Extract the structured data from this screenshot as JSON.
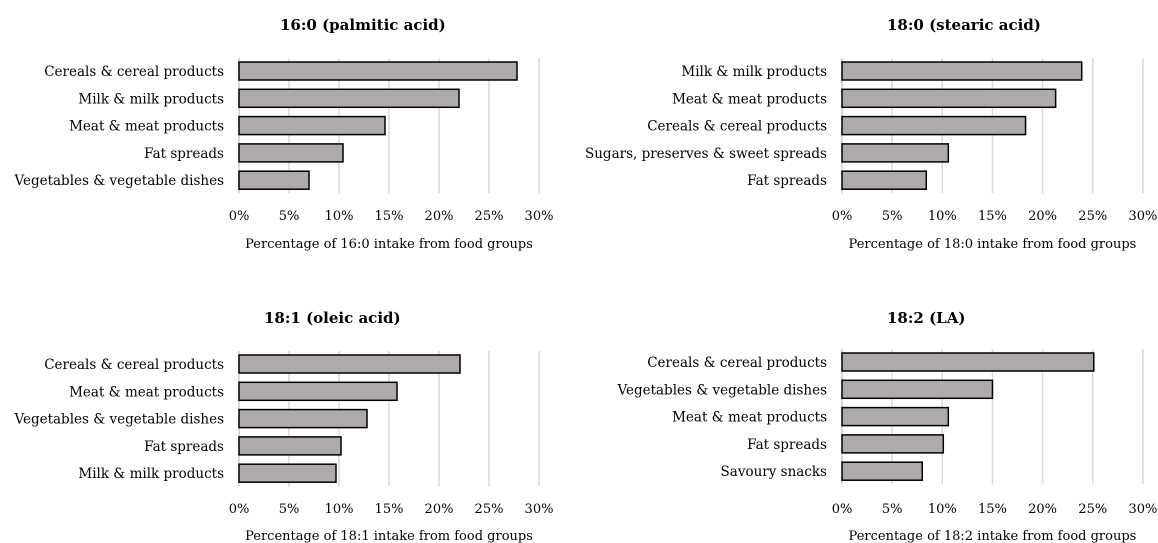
{
  "chart_data": [
    {
      "type": "bar",
      "orientation": "horizontal",
      "title": "16:0 (palmitic acid)",
      "xlabel": "Percentage of 16:0 intake from food groups",
      "categories": [
        "Cereals & cereal products",
        "Milk & milk products",
        "Meat & meat products",
        "Fat spreads",
        "Vegetables & vegetable dishes"
      ],
      "values": [
        27.8,
        22.0,
        14.6,
        10.4,
        7.0
      ],
      "xlim": [
        0,
        30
      ],
      "ticks": [
        "0%",
        "5%",
        "10%",
        "15%",
        "20%",
        "25%",
        "30%"
      ],
      "grid": true
    },
    {
      "type": "bar",
      "orientation": "horizontal",
      "title": "18:0 (stearic acid)",
      "xlabel": "Percentage of 18:0 intake from food groups",
      "categories": [
        "Milk & milk products",
        "Meat & meat products",
        "Cereals & cereal products",
        "Sugars, preserves & sweet spreads",
        "Fat spreads"
      ],
      "values": [
        23.9,
        21.3,
        18.3,
        10.6,
        8.4
      ],
      "xlim": [
        0,
        30
      ],
      "ticks": [
        "0%",
        "5%",
        "10%",
        "15%",
        "20%",
        "25%",
        "30%"
      ],
      "grid": true
    },
    {
      "type": "bar",
      "orientation": "horizontal",
      "title": "18:1 (oleic acid)",
      "xlabel": "Percentage of 18:1 intake from food groups",
      "categories": [
        "Cereals & cereal products",
        "Meat & meat products",
        "Vegetables & vegetable dishes",
        "Fat spreads",
        "Milk & milk products"
      ],
      "values": [
        22.1,
        15.8,
        12.8,
        10.2,
        9.7
      ],
      "xlim": [
        0,
        30
      ],
      "ticks": [
        "0%",
        "5%",
        "10%",
        "15%",
        "20%",
        "25%",
        "30%"
      ],
      "grid": true
    },
    {
      "type": "bar",
      "orientation": "horizontal",
      "title": "18:2 (LA)",
      "xlabel": "Percentage of 18:2 intake from food groups",
      "categories": [
        "Cereals & cereal products",
        "Vegetables & vegetable dishes",
        "Meat & meat products",
        "Fat spreads",
        "Savoury snacks"
      ],
      "values": [
        25.1,
        15.0,
        10.6,
        10.1,
        8.0
      ],
      "xlim": [
        0,
        30
      ],
      "ticks": [
        "0%",
        "5%",
        "10%",
        "15%",
        "20%",
        "25%",
        "30%"
      ],
      "grid": true
    }
  ],
  "colors": {
    "bar_fill": "#aeaaaa",
    "bar_stroke": "#000000",
    "grid": "#d9d9d9",
    "axis": "#bfbfbf"
  }
}
